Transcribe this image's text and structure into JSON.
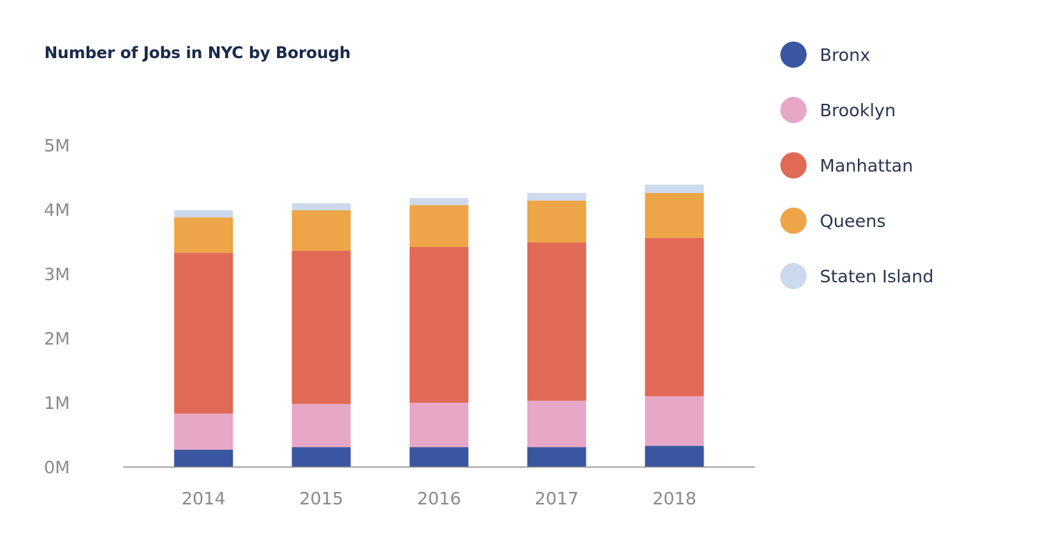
{
  "chart_data": {
    "type": "bar",
    "stacked": true,
    "title": "Number of Jobs in NYC by Borough",
    "xlabel": "",
    "ylabel": "",
    "categories": [
      "2014",
      "2015",
      "2016",
      "2017",
      "2018"
    ],
    "ylim": [
      0,
      5000000
    ],
    "y_ticks": [
      0,
      1000000,
      2000000,
      3000000,
      4000000,
      5000000
    ],
    "y_tick_labels": [
      "0M",
      "1M",
      "2M",
      "3M",
      "4M",
      "5M"
    ],
    "grid": false,
    "legend_position": "right",
    "series": [
      {
        "name": "Bronx",
        "color": "#3a56a0",
        "values": [
          270000,
          310000,
          310000,
          310000,
          330000
        ]
      },
      {
        "name": "Brooklyn",
        "color": "#e7a7c7",
        "values": [
          560000,
          670000,
          690000,
          720000,
          770000
        ]
      },
      {
        "name": "Manhattan",
        "color": "#e06a55",
        "values": [
          2500000,
          2380000,
          2420000,
          2460000,
          2460000
        ]
      },
      {
        "name": "Queens",
        "color": "#eda548",
        "values": [
          550000,
          630000,
          650000,
          650000,
          700000
        ]
      },
      {
        "name": "Staten Island",
        "color": "#cdd9ec",
        "values": [
          110000,
          110000,
          110000,
          120000,
          130000
        ]
      }
    ]
  }
}
